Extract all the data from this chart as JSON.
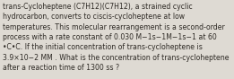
{
  "text": "trans-Cycloheptene (C7H12)(C7H12), a strained cyclic\nhydrocarbon, converts to ciscis-cycloheptene at low\ntemperatures. This molecular rearrangement is a second-order\nprocess with a rate constant of 0.030 M−1s−1M−1s−1 at 60\n•C•C. If the initial concentration of trans-cycloheptene is\n3.9×10−2 MM . What is the concentration of trans-cycloheptene\nafter a reaction time of 1300 ss ?",
  "background_color": "#dedad3",
  "text_color": "#2e2a25",
  "font_size": 5.55,
  "fig_width": 2.61,
  "fig_height": 0.88,
  "dpi": 100
}
